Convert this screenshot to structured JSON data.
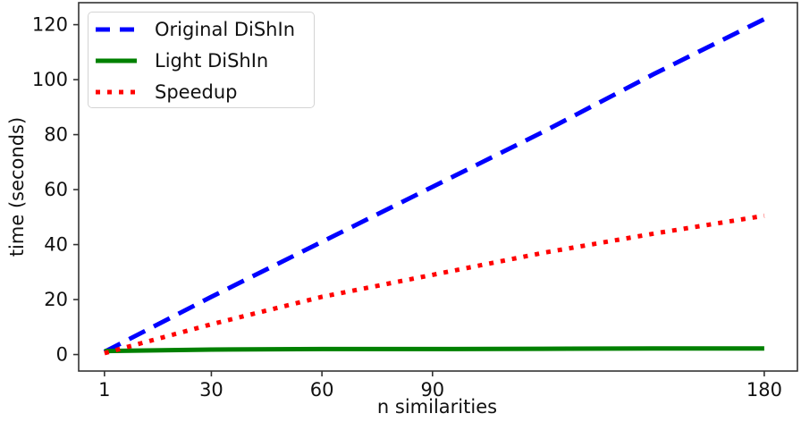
{
  "chart_data": {
    "type": "line",
    "title": "",
    "xlabel": "n similarities",
    "ylabel": "time (seconds)",
    "x": [
      1,
      30,
      60,
      90,
      120,
      150,
      180
    ],
    "series": [
      {
        "name": "Original DiShIn",
        "color": "#0000ff",
        "style": "dashed",
        "values": [
          1,
          21,
          41,
          61,
          81,
          102,
          122
        ]
      },
      {
        "name": "Light DiShIn",
        "color": "#008000",
        "style": "solid",
        "values": [
          1.3,
          1.8,
          2,
          2,
          2.1,
          2.2,
          2.2
        ]
      },
      {
        "name": "Speedup",
        "color": "#ff0000",
        "style": "dotted",
        "values": [
          0.5,
          11,
          21,
          29,
          37,
          44,
          50.5
        ]
      }
    ],
    "xticks": [
      1,
      30,
      60,
      90,
      180
    ],
    "yticks": [
      0,
      20,
      40,
      60,
      80,
      100,
      120
    ],
    "xlim": [
      -6,
      189
    ],
    "ylim": [
      -6,
      128
    ],
    "grid": false,
    "legend_position": "upper-left",
    "axis_color": "#333333",
    "text_color": "#111111"
  }
}
